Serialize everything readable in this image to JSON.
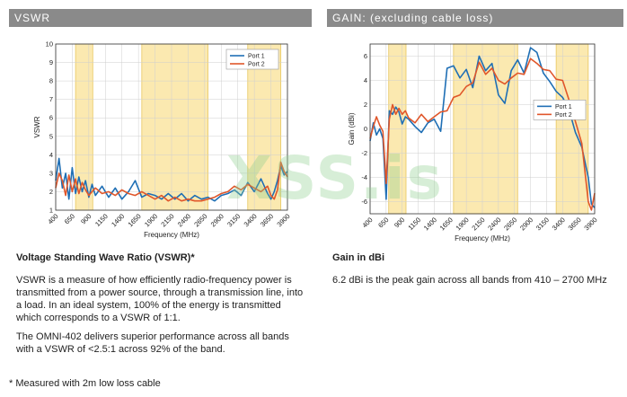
{
  "headers": {
    "left": "VSWR",
    "right": "GAIN: (excluding cable loss)"
  },
  "left_text": {
    "heading": "Voltage Standing Wave Ratio (VSWR)*",
    "p1_l1": "VSWR is a measure of how efficiently radio-frequency power is",
    "p1_l2": "transmitted from a power source, through a transmission line, into",
    "p1_l3": "a load. In an ideal system, 100% of the energy is transmitted",
    "p1_l4": "which corresponds to a VSWR of 1:1.",
    "p2_l1": "The OMNI-402 delivers superior performance across all bands",
    "p2_l2": "with a VSWR of <2.5:1 across 92% of the band."
  },
  "right_text": {
    "heading": "Gain in dBi",
    "p1": "6.2 dBi is the peak gain across all bands from 410 – 2700 MHz"
  },
  "footnote": "* Measured with 2m low loss cable",
  "watermark": "XSS.is",
  "colors": {
    "port1": "#1f6fb5",
    "port2": "#e0562a",
    "band": "#fbe9b0",
    "band_edge": "#e8c760",
    "header": "#8a8a8a"
  },
  "chart_data": [
    {
      "type": "line",
      "title": "",
      "xlabel": "Frequency (MHz)",
      "ylabel": "VSWR",
      "xlim": [
        400,
        3900
      ],
      "ylim": [
        1,
        10
      ],
      "xticks": [
        400,
        650,
        900,
        1150,
        1400,
        1650,
        1900,
        2150,
        2400,
        2650,
        2900,
        3150,
        3400,
        3650,
        3900
      ],
      "yticks": [
        1,
        2,
        3,
        4,
        5,
        6,
        7,
        8,
        9,
        10
      ],
      "grid": true,
      "legend": "top-right",
      "highlight_bands": [
        [
          700,
          960
        ],
        [
          1700,
          2700
        ],
        [
          3300,
          3800
        ]
      ],
      "series": [
        {
          "name": "Port 1",
          "x": [
            400,
            450,
            500,
            550,
            600,
            650,
            700,
            750,
            800,
            850,
            900,
            950,
            1000,
            1100,
            1200,
            1300,
            1400,
            1500,
            1600,
            1700,
            1800,
            1900,
            2000,
            2100,
            2200,
            2300,
            2400,
            2500,
            2600,
            2700,
            2800,
            2900,
            3000,
            3100,
            3200,
            3300,
            3400,
            3500,
            3600,
            3650,
            3700,
            3750,
            3800,
            3850,
            3900
          ],
          "values": [
            2.6,
            3.8,
            2.2,
            3.0,
            1.6,
            3.3,
            1.9,
            2.8,
            2.0,
            2.6,
            1.7,
            2.4,
            1.8,
            2.3,
            1.7,
            2.2,
            1.6,
            2.0,
            2.6,
            1.7,
            1.9,
            1.8,
            1.6,
            1.9,
            1.6,
            1.9,
            1.5,
            1.8,
            1.6,
            1.7,
            1.5,
            1.8,
            1.9,
            2.1,
            1.8,
            2.5,
            2.0,
            2.7,
            1.9,
            1.6,
            2.0,
            2.6,
            3.4,
            2.9,
            3.1
          ]
        },
        {
          "name": "Port 2",
          "x": [
            400,
            450,
            500,
            550,
            600,
            650,
            700,
            750,
            800,
            850,
            900,
            950,
            1000,
            1100,
            1200,
            1300,
            1400,
            1500,
            1600,
            1700,
            1800,
            1900,
            2000,
            2100,
            2200,
            2300,
            2400,
            2500,
            2600,
            2700,
            2800,
            2900,
            3000,
            3100,
            3200,
            3300,
            3400,
            3500,
            3600,
            3650,
            3700,
            3750,
            3800,
            3850,
            3900
          ],
          "values": [
            2.2,
            3.0,
            2.6,
            1.8,
            2.9,
            2.0,
            2.7,
            1.9,
            2.5,
            2.1,
            1.8,
            2.0,
            2.2,
            1.9,
            2.0,
            1.8,
            2.1,
            1.9,
            1.8,
            2.0,
            1.8,
            1.6,
            1.8,
            1.5,
            1.7,
            1.5,
            1.6,
            1.5,
            1.5,
            1.6,
            1.7,
            1.9,
            2.0,
            2.3,
            2.1,
            2.4,
            2.2,
            2.0,
            2.3,
            1.8,
            1.6,
            2.1,
            3.6,
            3.1,
            2.8
          ]
        }
      ]
    },
    {
      "type": "line",
      "title": "",
      "xlabel": "Frequency (MHz)",
      "ylabel": "Gain (dBi)",
      "xlim": [
        400,
        3900
      ],
      "ylim": [
        -7,
        7
      ],
      "xticks": [
        400,
        650,
        900,
        1150,
        1400,
        1650,
        1900,
        2150,
        2400,
        2650,
        2900,
        3150,
        3400,
        3650,
        3900
      ],
      "yticks": [
        -6,
        -4,
        -2,
        0,
        2,
        4,
        6
      ],
      "grid": true,
      "legend": "center-right",
      "highlight_bands": [
        [
          690,
          960
        ],
        [
          1700,
          2700
        ],
        [
          3300,
          3800
        ]
      ],
      "series": [
        {
          "name": "Port 1",
          "x": [
            400,
            450,
            500,
            550,
            600,
            650,
            700,
            750,
            800,
            850,
            900,
            950,
            1000,
            1100,
            1200,
            1300,
            1400,
            1500,
            1600,
            1700,
            1800,
            1900,
            2000,
            2100,
            2200,
            2300,
            2400,
            2500,
            2600,
            2700,
            2800,
            2900,
            3000,
            3100,
            3200,
            3300,
            3400,
            3500,
            3600,
            3700,
            3800,
            3850,
            3900
          ],
          "values": [
            -1.0,
            0.5,
            -0.5,
            0.0,
            -0.8,
            -5.8,
            1.5,
            1.2,
            1.8,
            1.4,
            0.4,
            1.0,
            0.8,
            0.2,
            -0.3,
            0.5,
            0.8,
            -0.2,
            5.0,
            5.2,
            4.2,
            4.9,
            3.4,
            6.0,
            4.8,
            5.4,
            2.8,
            2.1,
            4.8,
            5.7,
            4.6,
            6.7,
            6.3,
            4.6,
            3.9,
            3.1,
            2.6,
            1.6,
            -0.3,
            -1.5,
            -4.0,
            -6.2,
            -6.5
          ]
        },
        {
          "name": "Port 2",
          "x": [
            400,
            450,
            500,
            550,
            600,
            650,
            700,
            750,
            800,
            850,
            900,
            950,
            1000,
            1100,
            1200,
            1300,
            1400,
            1500,
            1600,
            1700,
            1800,
            1900,
            2000,
            2100,
            2200,
            2300,
            2400,
            2500,
            2600,
            2700,
            2800,
            2900,
            3000,
            3100,
            3200,
            3300,
            3400,
            3500,
            3600,
            3700,
            3800,
            3850,
            3900
          ],
          "values": [
            -0.8,
            0.2,
            1.0,
            0.3,
            -0.2,
            -4.5,
            0.8,
            2.0,
            1.2,
            1.7,
            1.2,
            1.5,
            0.9,
            0.5,
            1.2,
            0.6,
            1.0,
            1.4,
            1.5,
            2.6,
            2.8,
            3.5,
            3.8,
            5.5,
            4.5,
            5.0,
            4.0,
            3.7,
            4.2,
            4.6,
            4.5,
            5.8,
            5.4,
            4.9,
            4.8,
            4.1,
            4.0,
            2.4,
            0.6,
            -1.2,
            -6.0,
            -6.7,
            -5.3
          ]
        }
      ]
    }
  ]
}
